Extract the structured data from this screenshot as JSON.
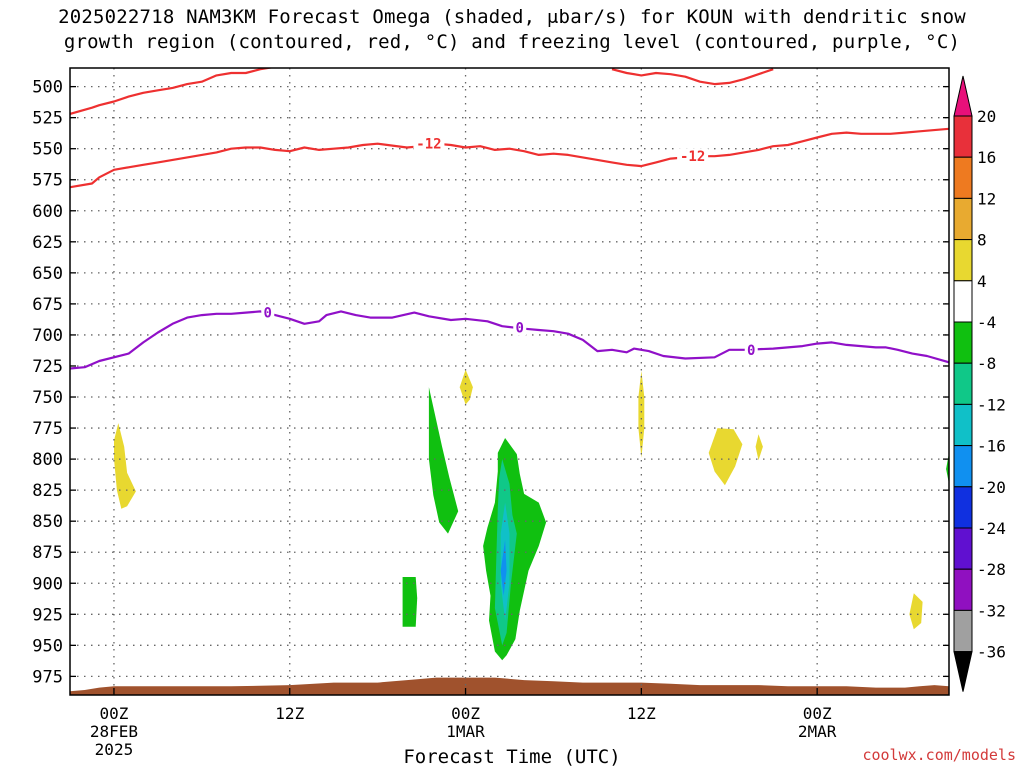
{
  "title": {
    "line1": "2025022718 NAM3KM Forecast Omega (shaded, μbar/s) for KOUN with dendritic snow",
    "line2": "growth region (contoured, red, °C) and freezing level (contoured, purple, °C)"
  },
  "credit": "coolwx.com/models",
  "chart_data": {
    "type": "heatmap",
    "xlabel": "Forecast Time (UTC)",
    "ylabel": "",
    "x_unit": "hours since 2025-02-27 18Z",
    "xlim": [
      3,
      63
    ],
    "ylim": [
      485,
      990
    ],
    "y_ticks": [
      500,
      525,
      550,
      575,
      600,
      625,
      650,
      675,
      700,
      725,
      750,
      775,
      800,
      825,
      850,
      875,
      900,
      925,
      950,
      975
    ],
    "x_ticks": [
      {
        "x": 6,
        "lines": [
          "00Z",
          "28FEB",
          "2025"
        ]
      },
      {
        "x": 18,
        "lines": [
          "12Z"
        ]
      },
      {
        "x": 30,
        "lines": [
          "00Z",
          "1MAR"
        ]
      },
      {
        "x": 42,
        "lines": [
          "12Z"
        ]
      },
      {
        "x": 54,
        "lines": [
          "00Z",
          "2MAR"
        ]
      }
    ],
    "grid": true,
    "colorbar": {
      "ticks": [
        "20",
        "16",
        "12",
        "8",
        "4",
        "-4",
        "-8",
        "-12",
        "-16",
        "-20",
        "-24",
        "-28",
        "-32",
        "-36"
      ],
      "colors": [
        "#e8107a",
        "#e8303a",
        "#ee7a20",
        "#e8aa30",
        "#e8d830",
        "#ffffff",
        "#10c010",
        "#10c888",
        "#10c0c8",
        "#1090f0",
        "#1030e0",
        "#6010d0",
        "#9010c0",
        "#a0a0a0",
        "#000000"
      ]
    },
    "contours": [
      {
        "level": "-12",
        "color": "#ee3030",
        "points": [
          [
            3,
            581
          ],
          [
            4.5,
            578
          ],
          [
            5,
            573
          ],
          [
            6,
            567
          ],
          [
            7,
            565
          ],
          [
            8,
            563
          ],
          [
            9,
            561
          ],
          [
            10,
            559
          ],
          [
            11,
            557
          ],
          [
            12,
            555
          ],
          [
            13,
            553
          ],
          [
            14,
            550
          ],
          [
            15,
            549
          ],
          [
            16,
            549
          ],
          [
            17,
            551
          ],
          [
            18,
            552
          ],
          [
            19,
            549
          ],
          [
            20,
            551
          ],
          [
            21,
            550
          ],
          [
            22,
            549
          ],
          [
            23,
            547
          ],
          [
            24,
            546
          ],
          [
            26,
            549
          ],
          [
            27,
            548
          ],
          [
            28,
            546
          ],
          [
            29,
            547
          ],
          [
            30,
            549
          ],
          [
            31,
            548
          ],
          [
            32,
            551
          ],
          [
            33,
            550
          ],
          [
            34,
            552
          ],
          [
            35,
            555
          ],
          [
            36,
            554
          ],
          [
            37,
            555
          ],
          [
            38,
            557
          ],
          [
            39,
            559
          ],
          [
            40,
            561
          ],
          [
            41,
            563
          ],
          [
            42,
            564
          ],
          [
            43,
            561
          ],
          [
            44,
            558
          ],
          [
            45,
            557
          ],
          [
            46,
            556
          ],
          [
            47,
            556
          ],
          [
            48,
            555
          ],
          [
            49,
            553
          ],
          [
            50,
            551
          ],
          [
            51,
            548
          ],
          [
            52,
            547
          ],
          [
            53,
            544
          ],
          [
            54,
            541
          ],
          [
            55,
            538
          ],
          [
            56,
            537
          ],
          [
            57,
            538
          ],
          [
            58,
            538
          ],
          [
            59,
            538
          ],
          [
            60,
            537
          ],
          [
            61,
            536
          ],
          [
            63,
            534
          ]
        ],
        "labels": [
          [
            27.5,
            546
          ],
          [
            45.5,
            556
          ]
        ]
      },
      {
        "level": "-12",
        "color": "#ee3030",
        "points": [
          [
            3,
            522
          ],
          [
            4.5,
            517
          ],
          [
            5,
            515
          ],
          [
            6,
            512
          ],
          [
            7,
            508
          ],
          [
            8,
            505
          ],
          [
            9,
            503
          ],
          [
            10,
            501
          ],
          [
            11,
            498
          ],
          [
            12,
            496
          ],
          [
            13,
            491
          ],
          [
            14,
            489
          ],
          [
            15,
            489
          ],
          [
            16,
            486
          ],
          [
            17,
            484
          ]
        ]
      },
      {
        "level": "-12",
        "color": "#ee3030",
        "points": [
          [
            40,
            486
          ],
          [
            41,
            489
          ],
          [
            42,
            491
          ],
          [
            43,
            489
          ],
          [
            44,
            490
          ],
          [
            45,
            492
          ],
          [
            46,
            496
          ],
          [
            47,
            498
          ],
          [
            48,
            497
          ],
          [
            49,
            494
          ],
          [
            50,
            490
          ],
          [
            51,
            486
          ]
        ]
      },
      {
        "level": "0",
        "color": "#9010c8",
        "points": [
          [
            3,
            727
          ],
          [
            4,
            726
          ],
          [
            5,
            721
          ],
          [
            7,
            715
          ],
          [
            8,
            706
          ],
          [
            9,
            698
          ],
          [
            10,
            691
          ],
          [
            11,
            686
          ],
          [
            12,
            684
          ],
          [
            13,
            683
          ],
          [
            14,
            683
          ],
          [
            15,
            682
          ],
          [
            16,
            681
          ],
          [
            17,
            684
          ],
          [
            18,
            687
          ],
          [
            19,
            691
          ],
          [
            20,
            689
          ],
          [
            20.5,
            684
          ],
          [
            21.5,
            681
          ],
          [
            22.5,
            684
          ],
          [
            23.5,
            686
          ],
          [
            25,
            686
          ],
          [
            26.5,
            682
          ],
          [
            27.5,
            685
          ],
          [
            29,
            688
          ],
          [
            30,
            687
          ],
          [
            31.5,
            689
          ],
          [
            32.5,
            693
          ],
          [
            34,
            695
          ],
          [
            35,
            696
          ],
          [
            36,
            697
          ],
          [
            37,
            699
          ],
          [
            38,
            704
          ],
          [
            39,
            713
          ],
          [
            40,
            712
          ],
          [
            41,
            714
          ],
          [
            41.5,
            711
          ],
          [
            42.5,
            713
          ],
          [
            43.5,
            717
          ],
          [
            45,
            719
          ],
          [
            47,
            718
          ],
          [
            48,
            712
          ],
          [
            49,
            712
          ],
          [
            51,
            711
          ],
          [
            53,
            709
          ],
          [
            54,
            707
          ],
          [
            55,
            706
          ],
          [
            56,
            708
          ],
          [
            57,
            709
          ],
          [
            58,
            710
          ],
          [
            58.7,
            710
          ],
          [
            59.5,
            712
          ],
          [
            60.5,
            715
          ],
          [
            61.5,
            717
          ],
          [
            63,
            722
          ]
        ],
        "labels": [
          [
            16.5,
            682
          ],
          [
            33.7,
            694
          ],
          [
            49.5,
            712
          ]
        ]
      }
    ],
    "shaded_regions": [
      {
        "color": "#e8d830",
        "points": [
          [
            6.3,
            771
          ],
          [
            6.7,
            790
          ],
          [
            6.9,
            811
          ],
          [
            7.5,
            826
          ],
          [
            6.9,
            838
          ],
          [
            6.5,
            840
          ],
          [
            6.2,
            825
          ],
          [
            6.0,
            800
          ],
          [
            6.0,
            785
          ]
        ]
      },
      {
        "color": "#e8d830",
        "points": [
          [
            30,
            728
          ],
          [
            30.5,
            742
          ],
          [
            30.3,
            752
          ],
          [
            30.0,
            756
          ],
          [
            29.6,
            742
          ]
        ]
      },
      {
        "color": "#e8d830",
        "points": [
          [
            42,
            729
          ],
          [
            42.2,
            750
          ],
          [
            42.2,
            775
          ],
          [
            42.0,
            799
          ],
          [
            41.8,
            775
          ],
          [
            41.8,
            750
          ]
        ]
      },
      {
        "color": "#e8d830",
        "points": [
          [
            47.2,
            775
          ],
          [
            48.3,
            776
          ],
          [
            48.9,
            788
          ],
          [
            48.4,
            806
          ],
          [
            47.7,
            821
          ],
          [
            47,
            810
          ],
          [
            46.6,
            795
          ]
        ]
      },
      {
        "color": "#e8d830",
        "points": [
          [
            50,
            780
          ],
          [
            50.3,
            790
          ],
          [
            50,
            801
          ],
          [
            49.8,
            790
          ]
        ]
      },
      {
        "color": "#e8d830",
        "points": [
          [
            60.6,
            908
          ],
          [
            61.2,
            915
          ],
          [
            61.1,
            932
          ],
          [
            60.6,
            937
          ],
          [
            60.3,
            925
          ]
        ]
      },
      {
        "color": "#10c010",
        "points": [
          [
            27.5,
            742
          ],
          [
            28.4,
            790
          ],
          [
            28.9,
            815
          ],
          [
            29.5,
            842
          ],
          [
            28.8,
            860
          ],
          [
            28.2,
            851
          ],
          [
            27.8,
            829
          ],
          [
            27.5,
            800
          ]
        ]
      },
      {
        "color": "#10c010",
        "points": [
          [
            26.6,
            895
          ],
          [
            26.7,
            912
          ],
          [
            26.6,
            935
          ],
          [
            25.7,
            935
          ],
          [
            25.7,
            895
          ]
        ]
      },
      {
        "color": "#10c010",
        "points": [
          [
            32.7,
            783
          ],
          [
            33.5,
            796
          ],
          [
            33.7,
            812
          ],
          [
            34.0,
            828
          ],
          [
            35.0,
            835
          ],
          [
            35.5,
            851
          ],
          [
            35.0,
            870
          ],
          [
            34.3,
            890
          ],
          [
            33.7,
            922
          ],
          [
            33.4,
            945
          ],
          [
            32.8,
            958
          ],
          [
            32.5,
            962
          ],
          [
            32.0,
            955
          ],
          [
            31.6,
            930
          ],
          [
            31.7,
            910
          ],
          [
            31.4,
            890
          ],
          [
            31.2,
            870
          ],
          [
            31.5,
            855
          ],
          [
            32.0,
            835
          ],
          [
            32.2,
            810
          ],
          [
            32.2,
            795
          ]
        ]
      },
      {
        "color": "#10c888",
        "points": [
          [
            32.5,
            800
          ],
          [
            33.0,
            820
          ],
          [
            33.2,
            845
          ],
          [
            33.5,
            860
          ],
          [
            33.1,
            900
          ],
          [
            32.8,
            940
          ],
          [
            32.5,
            950
          ],
          [
            32.0,
            920
          ],
          [
            32.1,
            880
          ],
          [
            32.2,
            840
          ],
          [
            32.3,
            815
          ]
        ]
      },
      {
        "color": "#10c0c8",
        "points": [
          [
            32.7,
            835
          ],
          [
            33.0,
            860
          ],
          [
            33.0,
            900
          ],
          [
            32.7,
            930
          ],
          [
            32.4,
            900
          ],
          [
            32.4,
            860
          ]
        ]
      },
      {
        "color": "#1090f0",
        "points": [
          [
            32.7,
            865
          ],
          [
            32.8,
            890
          ],
          [
            32.6,
            910
          ],
          [
            32.4,
            890
          ]
        ]
      },
      {
        "color": "#10c010",
        "points": [
          [
            63,
            795
          ],
          [
            62.8,
            808
          ],
          [
            63,
            820
          ]
        ]
      }
    ],
    "terrain": {
      "color": "#a0522d",
      "top": [
        [
          3,
          987
        ],
        [
          4,
          986
        ],
        [
          5,
          984
        ],
        [
          6,
          983
        ],
        [
          10,
          983
        ],
        [
          14,
          983
        ],
        [
          18,
          982
        ],
        [
          21,
          980
        ],
        [
          24,
          980
        ],
        [
          26,
          978
        ],
        [
          28,
          976
        ],
        [
          30,
          976
        ],
        [
          32,
          976
        ],
        [
          34,
          978
        ],
        [
          36,
          979
        ],
        [
          38,
          980
        ],
        [
          40,
          980
        ],
        [
          42,
          980
        ],
        [
          44,
          981
        ],
        [
          46,
          982
        ],
        [
          48,
          982
        ],
        [
          50,
          982
        ],
        [
          52,
          983
        ],
        [
          54,
          983
        ],
        [
          56,
          983
        ],
        [
          58,
          984
        ],
        [
          60,
          984
        ],
        [
          61,
          983
        ],
        [
          62,
          982
        ],
        [
          63,
          983
        ]
      ]
    }
  }
}
